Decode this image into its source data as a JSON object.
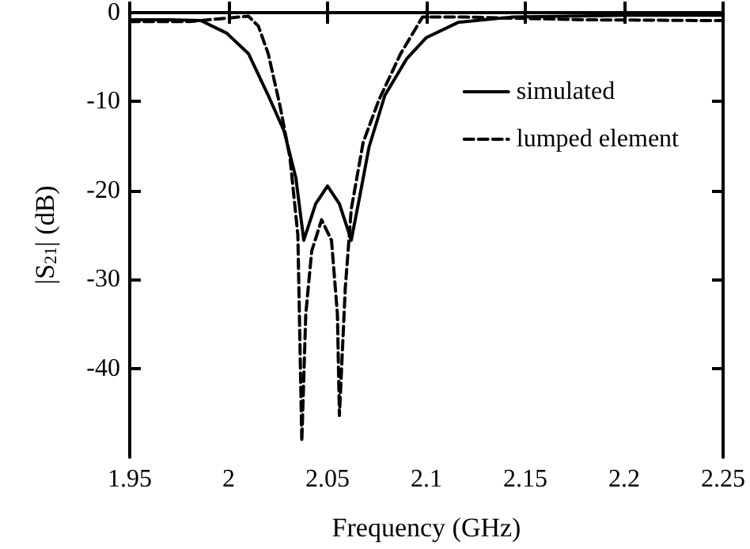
{
  "chart_data": {
    "type": "line",
    "xlabel": "Frequency (GHz)",
    "ylabel": "|S$_{21}$| (dB)",
    "xlim": [
      1.95,
      2.25
    ],
    "xticks": [
      1.95,
      2,
      2.05,
      2.1,
      2.15,
      2.2,
      2.25
    ],
    "ylim": [
      -50,
      0
    ],
    "yticks": [
      0,
      -10,
      -20,
      -30,
      -40
    ],
    "grid": false,
    "legend": "top right",
    "marker": "none",
    "series": [
      {
        "name": "simulated",
        "color": "#000000",
        "line_style": "solid",
        "x": [
          1.95,
          1.97,
          1.986,
          1.999,
          2.01,
          2.02,
          2.028,
          2.034,
          2.038,
          2.044,
          2.05,
          2.056,
          2.062,
          2.066,
          2.071,
          2.079,
          2.09,
          2.1,
          2.116,
          2.143,
          2.2,
          2.25
        ],
        "values": [
          -0.8,
          -0.8,
          -0.9,
          -2.3,
          -4.6,
          -9.3,
          -13.3,
          -18.6,
          -25.6,
          -21.5,
          -19.5,
          -21.5,
          -25.6,
          -21,
          -15.1,
          -9.3,
          -5.2,
          -2.8,
          -1.1,
          -0.5,
          -0.3,
          -0.3
        ]
      },
      {
        "name": "lumped element",
        "color": "#000000",
        "line_style": "dashed",
        "x": [
          1.95,
          1.98,
          2.0,
          2.01,
          2.015,
          2.02,
          2.026,
          2.031,
          2.035,
          2.037,
          2.039,
          2.042,
          2.047,
          2.052,
          2.055,
          2.056,
          2.059,
          2.062,
          2.068,
          2.076,
          2.087,
          2.098,
          2.12,
          2.18,
          2.25
        ],
        "values": [
          -1.0,
          -1.0,
          -0.6,
          -0.4,
          -1.5,
          -4.6,
          -10.5,
          -16.3,
          -25,
          -48.2,
          -33.9,
          -26.8,
          -23.3,
          -25.6,
          -33.9,
          -45.3,
          -30.9,
          -22.1,
          -14.6,
          -9.8,
          -4.6,
          -0.5,
          -0.5,
          -0.8,
          -0.9
        ]
      }
    ]
  }
}
